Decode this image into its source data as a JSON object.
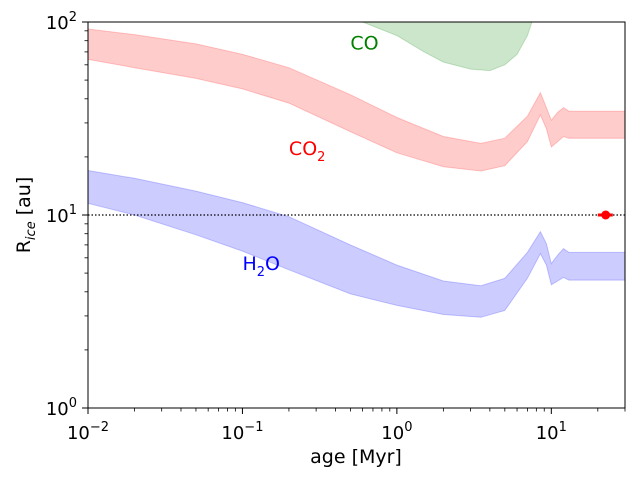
{
  "chart_data": {
    "type": "area",
    "xlabel": "age [Myr]",
    "ylabel": "R_ice [au]",
    "xscale": "log",
    "yscale": "log",
    "xlim": [
      0.01,
      30
    ],
    "ylim": [
      1,
      100
    ],
    "grid": false,
    "x_ticks": [
      {
        "value": 0.01,
        "base": "10",
        "exp": "−2"
      },
      {
        "value": 0.1,
        "base": "10",
        "exp": "−1"
      },
      {
        "value": 1,
        "base": "10",
        "exp": "0"
      },
      {
        "value": 10,
        "base": "10",
        "exp": "1"
      }
    ],
    "y_ticks": [
      {
        "value": 1,
        "base": "10",
        "exp": "0"
      },
      {
        "value": 10,
        "base": "10",
        "exp": "1"
      },
      {
        "value": 100,
        "base": "10",
        "exp": "2"
      }
    ],
    "reference_line": {
      "y": 10,
      "style": "dotted",
      "color": "#000000"
    },
    "point": {
      "x": 22.5,
      "y": 10,
      "xerr": [
        20,
        25
      ],
      "color": "#ff0000"
    },
    "series": [
      {
        "label": "H",
        "label_sub": "2",
        "label_rest": "O",
        "color": "#0000ff",
        "label_pos": {
          "x": 0.1,
          "y": 5.2
        },
        "x": [
          0.01,
          0.02,
          0.05,
          0.1,
          0.2,
          0.5,
          1,
          2,
          3.5,
          5,
          7,
          8.5,
          9.3,
          10,
          11,
          12,
          13,
          15,
          20,
          30
        ],
        "lower": [
          11.5,
          10.0,
          7.9,
          6.5,
          5.2,
          3.9,
          3.4,
          3.05,
          2.95,
          3.2,
          4.7,
          6.3,
          5.5,
          4.35,
          4.55,
          4.75,
          4.6,
          4.6,
          4.6,
          4.6
        ],
        "upper": [
          17.0,
          15.5,
          13.3,
          11.6,
          9.8,
          7.0,
          5.5,
          4.55,
          4.3,
          4.7,
          6.4,
          8.2,
          7.1,
          5.6,
          6.2,
          6.7,
          6.4,
          6.4,
          6.4,
          6.4
        ]
      },
      {
        "label": "CO",
        "label_sub": "2",
        "label_rest": "",
        "color": "#ff0000",
        "label_pos": {
          "x": 0.2,
          "y": 20.5
        },
        "x": [
          0.01,
          0.02,
          0.05,
          0.1,
          0.2,
          0.5,
          1,
          2,
          3.5,
          5,
          7,
          8.5,
          9.3,
          10,
          11,
          12,
          13,
          15,
          20,
          30
        ],
        "lower": [
          64,
          58,
          51,
          45,
          38,
          27,
          21,
          17.8,
          16.9,
          18,
          24,
          33,
          28,
          22.5,
          24,
          25.5,
          25,
          25,
          25,
          25
        ],
        "upper": [
          92,
          86,
          77,
          68,
          58,
          42,
          32,
          25.5,
          23.5,
          25,
          32.5,
          43,
          36,
          31,
          34,
          36,
          34.5,
          34.5,
          34.5,
          34.5
        ]
      },
      {
        "label": "CO",
        "label_sub": "",
        "label_rest": "",
        "color": "#008000",
        "label_pos": {
          "x": 0.5,
          "y": 72
        },
        "x": [
          0.6,
          1,
          1.5,
          2,
          3,
          4,
          5,
          6,
          7,
          7.5,
          9,
          10,
          11,
          12
        ],
        "lower": [
          100,
          85,
          70,
          62,
          57,
          56,
          60,
          68,
          85,
          100,
          null,
          null,
          null,
          null
        ],
        "upper": [
          100,
          100,
          100,
          100,
          100,
          100,
          100,
          100,
          100,
          100,
          100,
          100,
          100,
          100
        ]
      }
    ]
  }
}
